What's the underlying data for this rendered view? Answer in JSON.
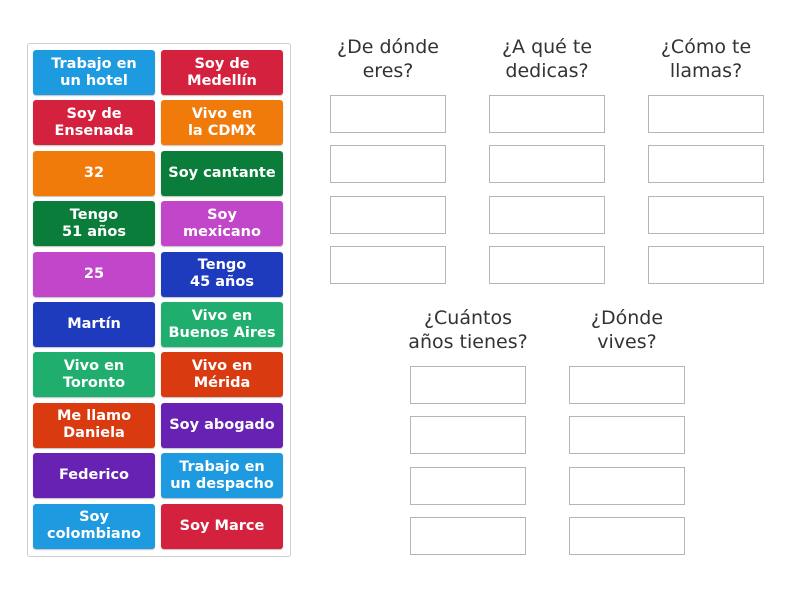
{
  "tiles": [
    {
      "label": "Trabajo en\nun hotel",
      "color": "#1e9be0"
    },
    {
      "label": "Soy de\nMedellín",
      "color": "#d4213d"
    },
    {
      "label": "Soy de\nEnsenada",
      "color": "#d4213d"
    },
    {
      "label": "Vivo en\nla CDMX",
      "color": "#f07b0a"
    },
    {
      "label": "32",
      "color": "#f07b0a"
    },
    {
      "label": "Soy cantante",
      "color": "#0a7d3a"
    },
    {
      "label": "Tengo\n51 años",
      "color": "#0a7d3a"
    },
    {
      "label": "Soy\nmexicano",
      "color": "#c246c9"
    },
    {
      "label": "25",
      "color": "#c246c9"
    },
    {
      "label": "Tengo\n45 años",
      "color": "#1f3bbd"
    },
    {
      "label": "Martín",
      "color": "#1f3bbd"
    },
    {
      "label": "Vivo en\nBuenos Aires",
      "color": "#1fae6e"
    },
    {
      "label": "Vivo en\nToronto",
      "color": "#1fae6e"
    },
    {
      "label": "Vivo en\nMérida",
      "color": "#d93a10"
    },
    {
      "label": "Me llamo\nDaniela",
      "color": "#d93a10"
    },
    {
      "label": "Soy abogado",
      "color": "#6722b3"
    },
    {
      "label": "Federico",
      "color": "#6722b3"
    },
    {
      "label": "Trabajo en\nun despacho",
      "color": "#1e9be0"
    },
    {
      "label": "Soy\ncolombiano",
      "color": "#1e9be0"
    },
    {
      "label": "Soy Marce",
      "color": "#d4213d"
    }
  ],
  "categories": [
    {
      "title": "¿De dónde\neres?",
      "slots": 4
    },
    {
      "title": "¿A qué te\ndedicas?",
      "slots": 4
    },
    {
      "title": "¿Cómo te\nllamas?",
      "slots": 4
    },
    {
      "title": "¿Cuántos\naños tienes?",
      "slots": 4
    },
    {
      "title": "¿Dónde\nvives?",
      "slots": 4
    }
  ]
}
